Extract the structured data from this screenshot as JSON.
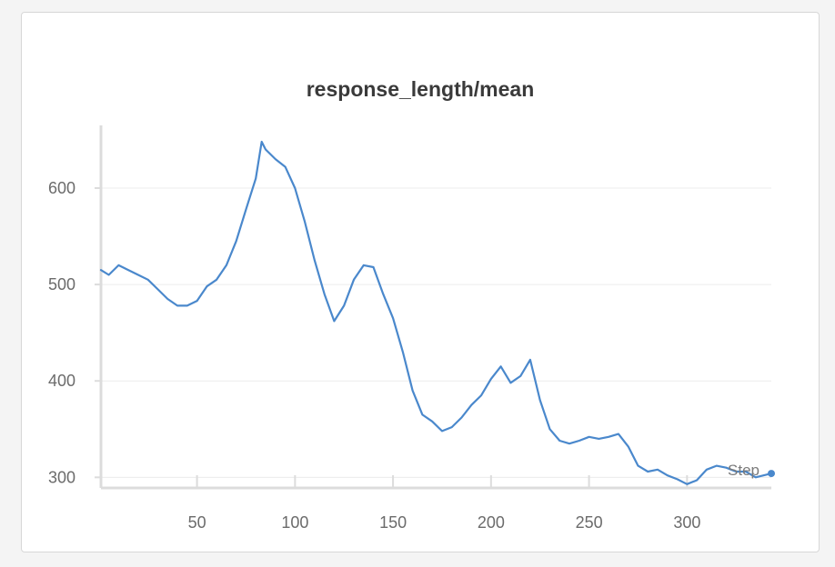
{
  "chart_data": {
    "type": "line",
    "title": "response_length/mean",
    "xlabel": "Step",
    "ylabel": "",
    "xlim": [
      1,
      343
    ],
    "ylim": [
      289,
      665
    ],
    "x_ticks": [
      50,
      100,
      150,
      200,
      250,
      300
    ],
    "y_ticks": [
      300,
      400,
      500,
      600
    ],
    "grid": true,
    "legend": "none",
    "series": [
      {
        "color": "#4a88cc",
        "x": [
          1,
          5,
          10,
          15,
          20,
          25,
          30,
          35,
          40,
          45,
          50,
          55,
          60,
          65,
          70,
          75,
          80,
          83,
          85,
          90,
          95,
          100,
          105,
          110,
          115,
          120,
          125,
          130,
          135,
          140,
          145,
          150,
          155,
          160,
          165,
          170,
          175,
          180,
          185,
          190,
          195,
          200,
          205,
          210,
          215,
          220,
          225,
          230,
          235,
          240,
          245,
          250,
          255,
          260,
          265,
          270,
          275,
          280,
          285,
          290,
          295,
          300,
          305,
          310,
          315,
          320,
          325,
          330,
          335,
          343
        ],
        "y": [
          515,
          510,
          520,
          515,
          510,
          505,
          495,
          485,
          478,
          478,
          483,
          498,
          505,
          520,
          545,
          578,
          610,
          648,
          640,
          630,
          622,
          600,
          565,
          525,
          490,
          462,
          478,
          505,
          520,
          518,
          490,
          465,
          430,
          390,
          365,
          358,
          348,
          352,
          362,
          375,
          385,
          402,
          415,
          398,
          405,
          422,
          380,
          350,
          338,
          335,
          338,
          342,
          340,
          342,
          345,
          332,
          312,
          306,
          308,
          302,
          298,
          293,
          297,
          308,
          312,
          310,
          306,
          306,
          300,
          304
        ]
      }
    ]
  }
}
